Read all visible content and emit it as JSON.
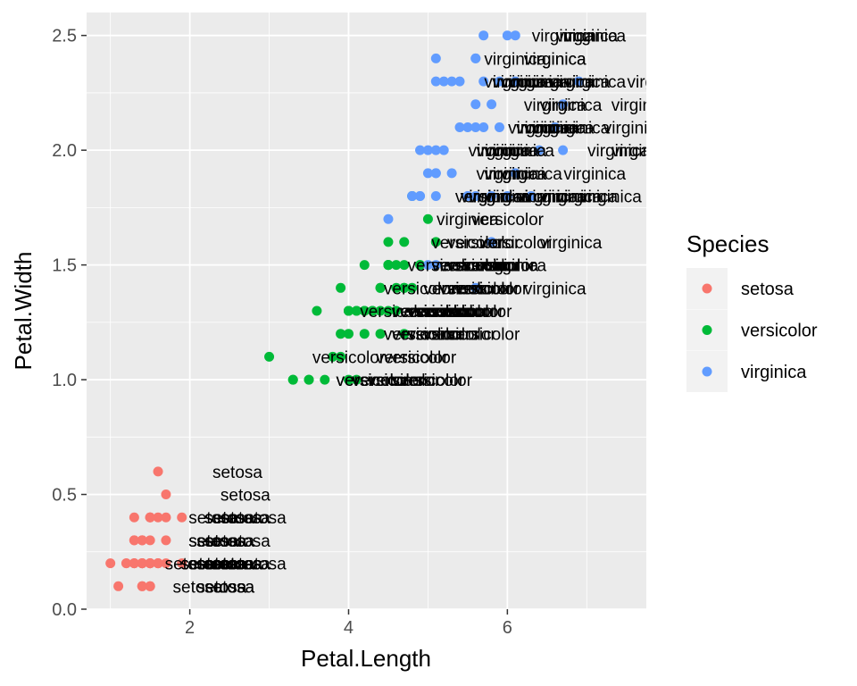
{
  "chart_data": {
    "type": "scatter",
    "title": "",
    "xlabel": "Petal.Length",
    "ylabel": "Petal.Width",
    "xlim": [
      0.7,
      7.75
    ],
    "ylim": [
      0.0,
      2.6
    ],
    "x_ticks": [
      "2",
      "4",
      "6"
    ],
    "y_ticks": [
      "0.0",
      "0.5",
      "1.0",
      "1.5",
      "2.0",
      "2.5"
    ],
    "grid": true,
    "panel_background": "#ebebeb",
    "legend": {
      "title": "Species",
      "position": "right",
      "entries": [
        "setosa",
        "versicolor",
        "virginica"
      ]
    },
    "colors": {
      "setosa": "#f8766d",
      "versicolor": "#00ba38",
      "virginica": "#619cff"
    },
    "label_offset_x": 1.0,
    "series": [
      {
        "name": "setosa",
        "x": [
          1.4,
          1.4,
          1.3,
          1.5,
          1.4,
          1.7,
          1.4,
          1.5,
          1.4,
          1.5,
          1.5,
          1.6,
          1.4,
          1.1,
          1.2,
          1.5,
          1.3,
          1.4,
          1.7,
          1.5,
          1.7,
          1.5,
          1.0,
          1.7,
          1.9,
          1.6,
          1.6,
          1.5,
          1.4,
          1.6,
          1.6,
          1.5,
          1.5,
          1.4,
          1.5,
          1.2,
          1.3,
          1.4,
          1.3,
          1.5,
          1.3,
          1.3,
          1.3,
          1.6,
          1.9,
          1.4,
          1.6,
          1.4,
          1.5,
          1.4
        ],
        "y": [
          0.2,
          0.2,
          0.2,
          0.2,
          0.2,
          0.4,
          0.3,
          0.2,
          0.2,
          0.1,
          0.2,
          0.2,
          0.1,
          0.1,
          0.2,
          0.4,
          0.4,
          0.3,
          0.3,
          0.3,
          0.2,
          0.4,
          0.2,
          0.5,
          0.2,
          0.2,
          0.4,
          0.2,
          0.2,
          0.2,
          0.2,
          0.4,
          0.1,
          0.2,
          0.2,
          0.2,
          0.2,
          0.1,
          0.2,
          0.2,
          0.3,
          0.3,
          0.2,
          0.6,
          0.4,
          0.3,
          0.2,
          0.2,
          0.2,
          0.2
        ]
      },
      {
        "name": "versicolor",
        "x": [
          4.7,
          4.5,
          4.9,
          4.0,
          4.6,
          4.5,
          4.7,
          3.3,
          4.6,
          3.9,
          3.5,
          4.2,
          4.0,
          4.7,
          3.6,
          4.4,
          4.5,
          4.1,
          4.5,
          3.9,
          4.8,
          4.0,
          4.9,
          4.7,
          4.3,
          4.4,
          4.8,
          5.0,
          4.5,
          3.5,
          3.8,
          3.7,
          3.9,
          5.1,
          4.5,
          4.5,
          4.7,
          4.4,
          4.1,
          4.0,
          4.4,
          4.6,
          4.0,
          3.3,
          4.2,
          4.2,
          4.2,
          4.3,
          3.0,
          4.1
        ],
        "y": [
          1.4,
          1.5,
          1.5,
          1.3,
          1.5,
          1.3,
          1.6,
          1.0,
          1.3,
          1.4,
          1.0,
          1.5,
          1.0,
          1.4,
          1.3,
          1.4,
          1.5,
          1.0,
          1.5,
          1.1,
          1.8,
          1.3,
          1.5,
          1.2,
          1.3,
          1.4,
          1.4,
          1.7,
          1.5,
          1.0,
          1.1,
          1.0,
          1.2,
          1.6,
          1.5,
          1.6,
          1.5,
          1.3,
          1.3,
          1.3,
          1.2,
          1.4,
          1.2,
          1.0,
          1.3,
          1.2,
          1.3,
          1.3,
          1.1,
          1.3
        ]
      },
      {
        "name": "virginica",
        "x": [
          6.0,
          5.1,
          5.9,
          5.6,
          5.8,
          6.6,
          4.5,
          6.3,
          5.8,
          6.1,
          5.1,
          5.3,
          5.5,
          5.0,
          5.1,
          5.3,
          5.5,
          6.7,
          6.9,
          5.0,
          5.7,
          4.9,
          6.7,
          4.9,
          5.7,
          6.0,
          4.8,
          4.9,
          5.6,
          5.8,
          6.1,
          6.4,
          5.6,
          5.1,
          5.6,
          6.1,
          5.6,
          5.5,
          4.8,
          5.4,
          5.6,
          5.1,
          5.1,
          5.9,
          5.7,
          5.2,
          5.0,
          5.2,
          5.4,
          5.1
        ],
        "y": [
          2.5,
          1.9,
          2.1,
          1.8,
          2.2,
          2.1,
          1.7,
          1.8,
          1.8,
          2.5,
          2.0,
          1.9,
          2.1,
          2.0,
          2.4,
          2.3,
          1.8,
          2.2,
          2.3,
          1.5,
          2.3,
          2.0,
          2.0,
          1.8,
          2.1,
          1.8,
          1.8,
          1.8,
          2.1,
          1.6,
          1.9,
          2.0,
          2.2,
          1.5,
          1.4,
          2.3,
          2.4,
          1.8,
          1.8,
          2.1,
          2.4,
          2.3,
          1.9,
          2.3,
          2.5,
          2.3,
          1.9,
          2.0,
          2.3,
          1.8
        ]
      }
    ]
  }
}
